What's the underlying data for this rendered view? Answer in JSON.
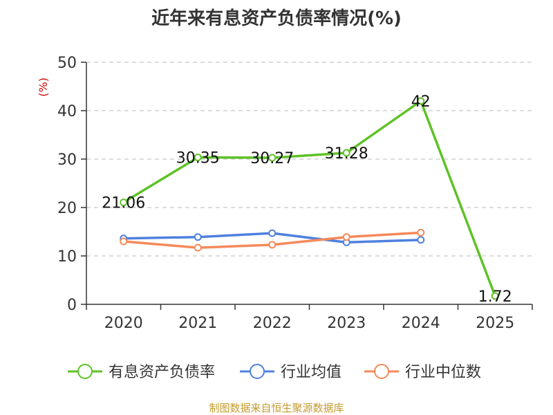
{
  "chart_data": {
    "type": "line",
    "title": "近年来有息资产负债率情况(%)",
    "ylabel": "(%)",
    "xlabel": "",
    "categories": [
      "2020",
      "2021",
      "2022",
      "2023",
      "2024",
      "2025"
    ],
    "ylim": [
      0,
      50
    ],
    "yticks": [
      0,
      10,
      20,
      30,
      40,
      50
    ],
    "grid": true,
    "legend_position": "bottom",
    "series": [
      {
        "name": "有息资产负债率",
        "color": "#5ec226",
        "values": [
          21.06,
          30.35,
          30.27,
          31.28,
          42,
          1.72
        ],
        "labels": [
          "21.06",
          "30.35",
          "30.27",
          "31.28",
          "42",
          "1.72"
        ]
      },
      {
        "name": "行业均值",
        "color": "#4f80de",
        "values": [
          13.6,
          13.9,
          14.7,
          12.8,
          13.3,
          null
        ]
      },
      {
        "name": "行业中位数",
        "color": "#f5895a",
        "values": [
          13.0,
          11.7,
          12.3,
          13.9,
          14.8,
          null
        ]
      }
    ]
  },
  "source": "制图数据来自恒生聚源数据库"
}
